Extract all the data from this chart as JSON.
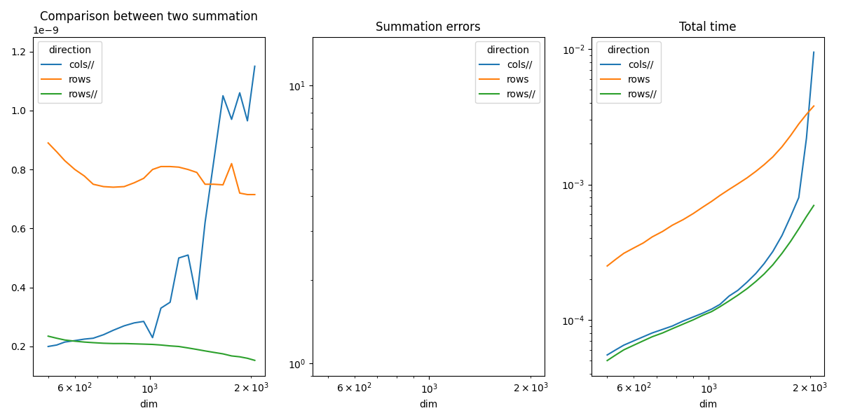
{
  "title1": "Comparison between two summation",
  "title2": "Summation errors",
  "title3": "Total time",
  "xlabel": "dim",
  "legend_title": "direction",
  "legend_labels": [
    "cols//",
    "rows",
    "rows//"
  ],
  "colors": [
    "#1f77b4",
    "#ff7f0e",
    "#2ca02c"
  ],
  "dim1": [
    500,
    530,
    560,
    600,
    640,
    680,
    730,
    780,
    840,
    900,
    960,
    1020,
    1080,
    1150,
    1220,
    1300,
    1380,
    1460,
    1550,
    1650,
    1750,
    1850,
    1950,
    2050
  ],
  "p1_cols": [
    0.2,
    0.205,
    0.215,
    0.22,
    0.225,
    0.228,
    0.24,
    0.255,
    0.27,
    0.28,
    0.285,
    0.23,
    0.33,
    0.35,
    0.5,
    0.51,
    0.36,
    0.62,
    0.83,
    1.05,
    0.97,
    1.06,
    0.965,
    1.15
  ],
  "p1_rows": [
    0.89,
    0.86,
    0.83,
    0.8,
    0.778,
    0.75,
    0.742,
    0.74,
    0.742,
    0.755,
    0.77,
    0.8,
    0.81,
    0.81,
    0.808,
    0.8,
    0.79,
    0.75,
    0.75,
    0.748,
    0.82,
    0.72,
    0.715,
    0.715
  ],
  "p1_rowsp": [
    0.235,
    0.228,
    0.222,
    0.218,
    0.215,
    0.213,
    0.211,
    0.21,
    0.21,
    0.209,
    0.208,
    0.207,
    0.205,
    0.202,
    0.2,
    0.195,
    0.19,
    0.185,
    0.18,
    0.175,
    0.168,
    0.165,
    0.16,
    0.153
  ],
  "dim3": [
    500,
    530,
    560,
    600,
    640,
    680,
    730,
    780,
    840,
    900,
    960,
    1020,
    1080,
    1150,
    1220,
    1300,
    1380,
    1460,
    1550,
    1650,
    1750,
    1850,
    1950,
    2050
  ],
  "p3_cols": [
    5.5e-05,
    6e-05,
    6.5e-05,
    7e-05,
    7.5e-05,
    8e-05,
    8.5e-05,
    9e-05,
    9.8e-05,
    0.000105,
    0.000112,
    0.00012,
    0.00013,
    0.00015,
    0.000165,
    0.00019,
    0.00022,
    0.00026,
    0.00032,
    0.00042,
    0.00058,
    0.0008,
    0.0022,
    0.0095
  ],
  "p3_rows": [
    0.00025,
    0.00028,
    0.00031,
    0.00034,
    0.00037,
    0.00041,
    0.00045,
    0.0005,
    0.00055,
    0.00061,
    0.00068,
    0.00075,
    0.00083,
    0.00092,
    0.00101,
    0.00112,
    0.00125,
    0.0014,
    0.0016,
    0.0019,
    0.0023,
    0.0028,
    0.0033,
    0.0038
  ],
  "p3_rowsp": [
    5e-05,
    5.5e-05,
    6e-05,
    6.5e-05,
    7e-05,
    7.5e-05,
    8e-05,
    8.6e-05,
    9.3e-05,
    0.0001,
    0.000108,
    0.000115,
    0.000125,
    0.000138,
    0.000152,
    0.00017,
    0.000192,
    0.000218,
    0.000255,
    0.00031,
    0.00038,
    0.00047,
    0.00058,
    0.0007
  ],
  "p1_ylim": [
    0.1,
    1.25
  ],
  "p2_ylim": [
    0.9,
    15
  ],
  "p2_xlim": [
    450,
    2200
  ],
  "xlim": [
    450,
    2200
  ]
}
